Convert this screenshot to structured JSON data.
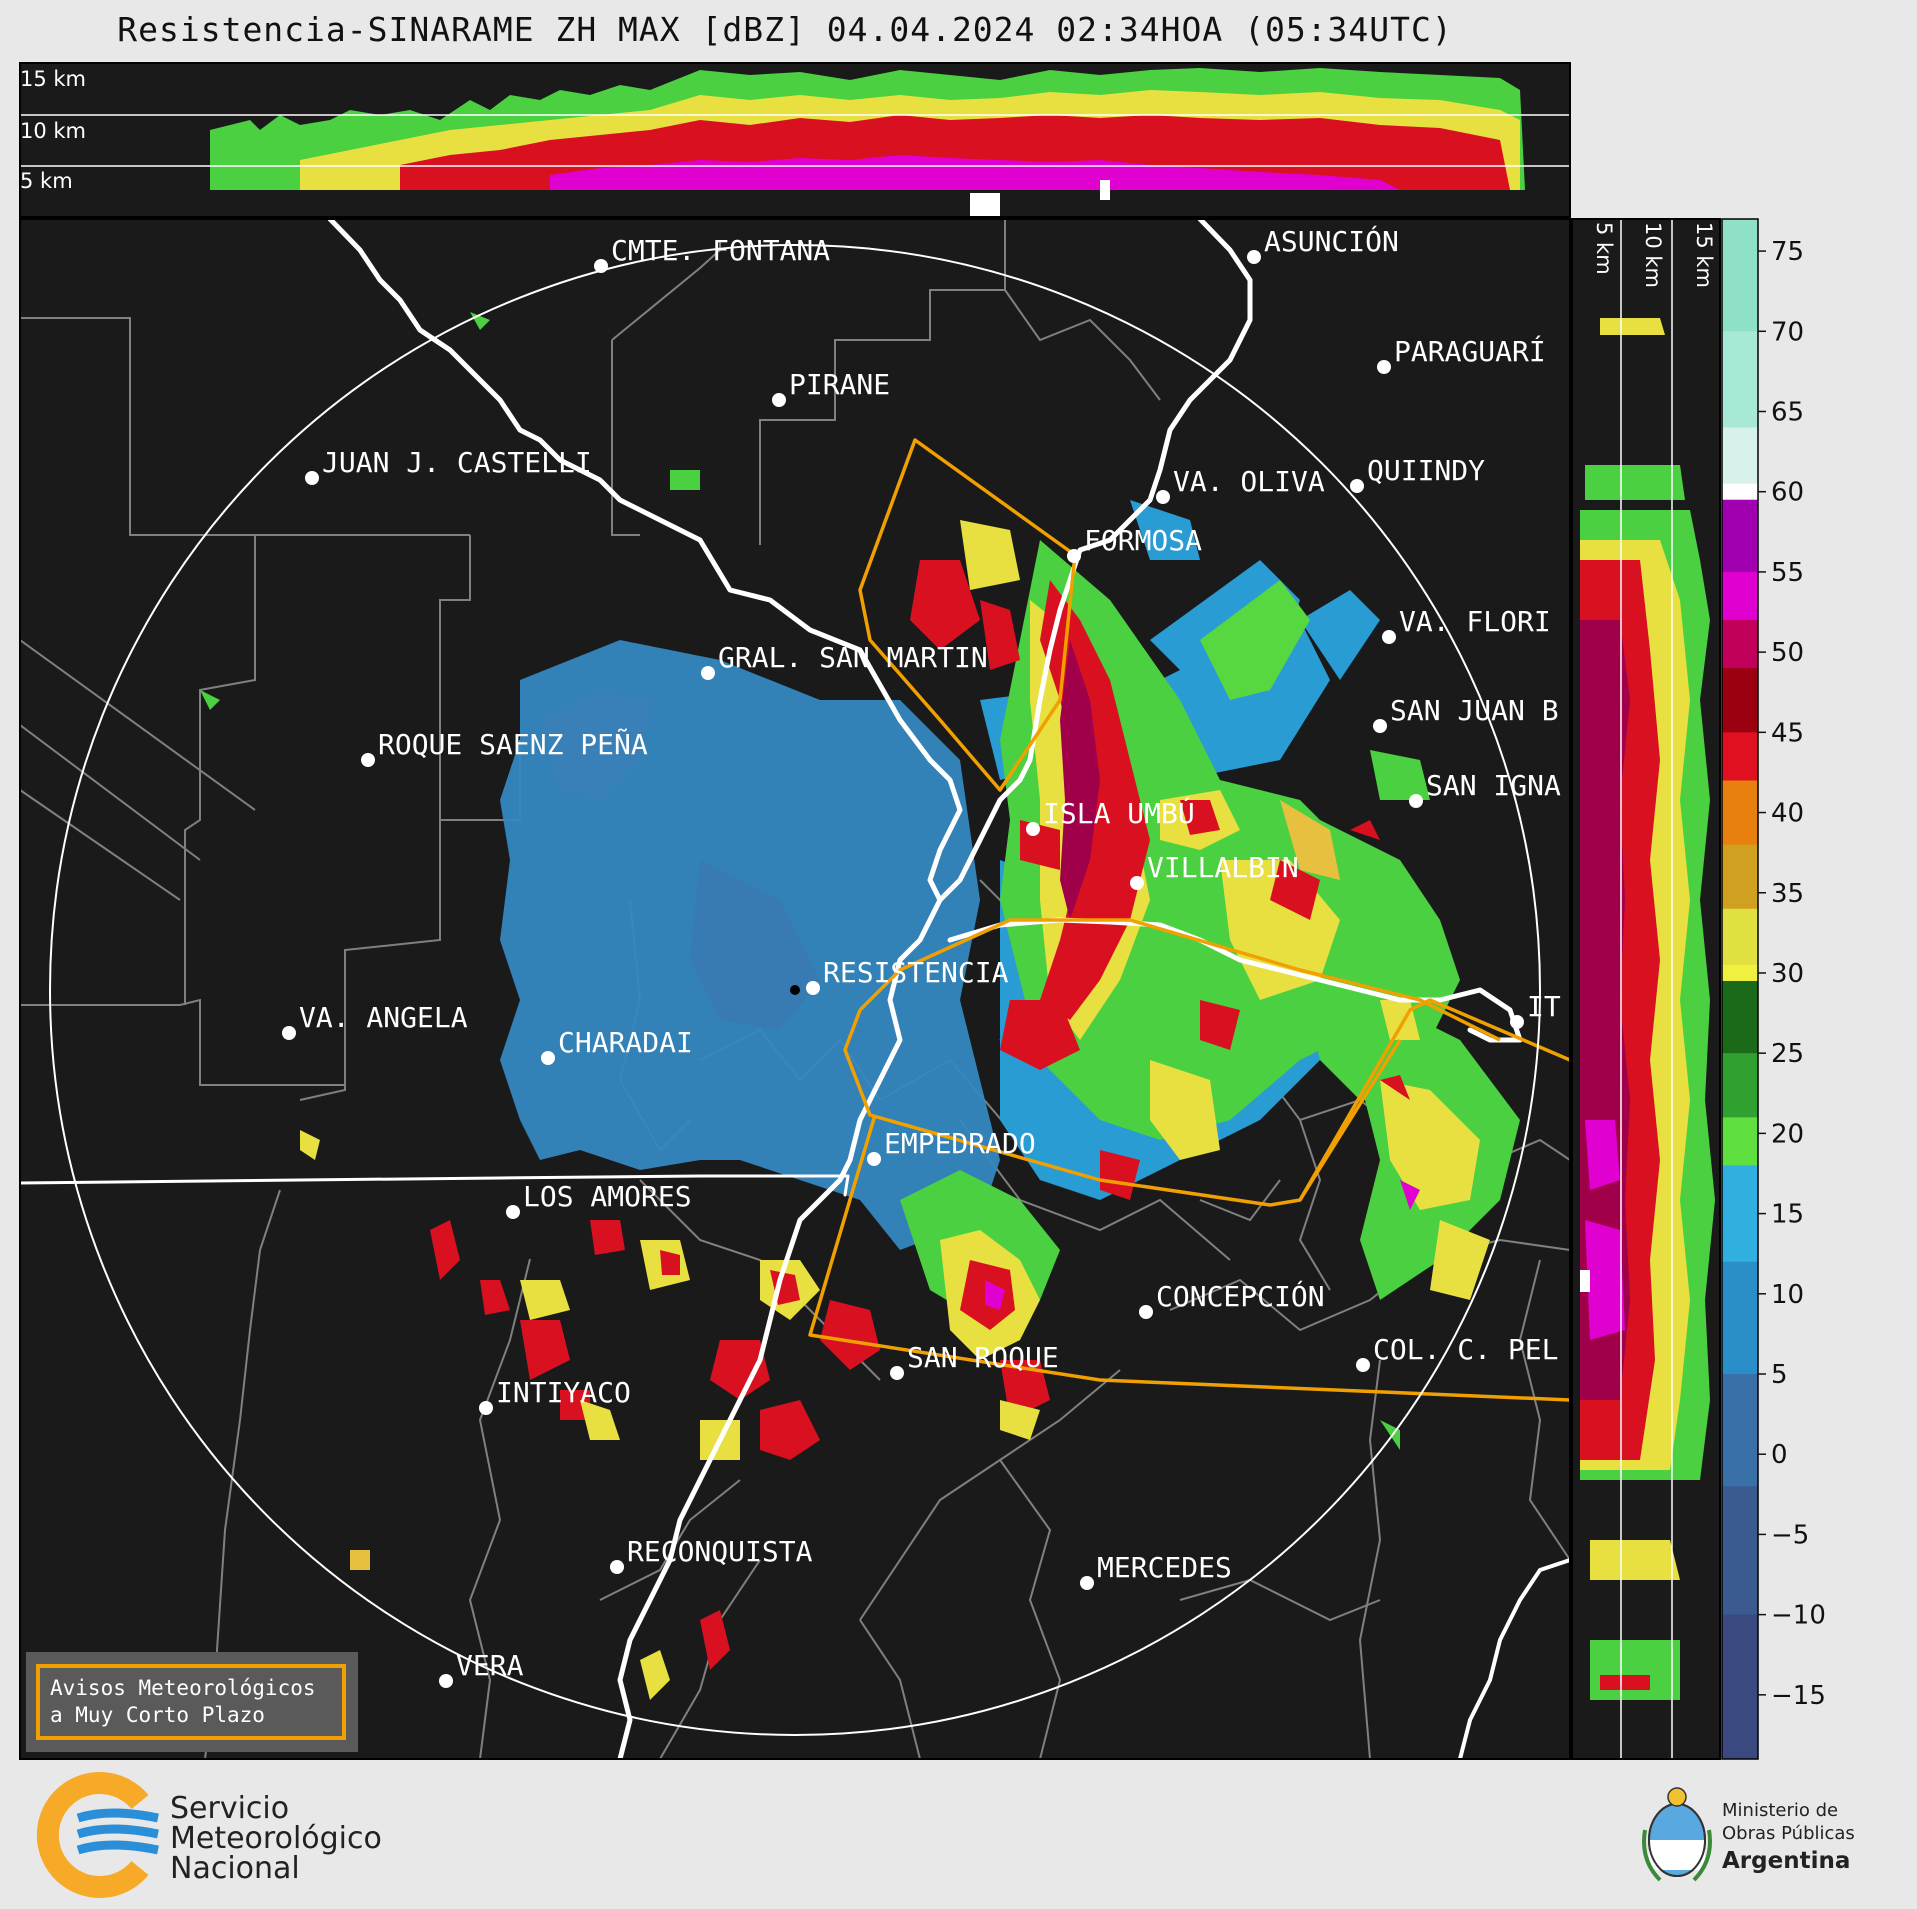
{
  "title": "Resistencia-SINARAME ZH MAX [dBZ] 04.04.2024 02:34HOA (05:34UTC)",
  "altitude_top": [
    "15 km",
    "10 km",
    "5 km"
  ],
  "altitude_side": [
    "5 km",
    "10 km",
    "15 km"
  ],
  "cities": [
    {
      "id": "cmte-fontana",
      "name": "CMTE. FONTANA"
    },
    {
      "id": "asuncion",
      "name": "ASUNCIÓN"
    },
    {
      "id": "paraguari",
      "name": "PARAGUARÍ"
    },
    {
      "id": "pirane",
      "name": "PIRANE"
    },
    {
      "id": "juan-castelli",
      "name": "JUAN J. CASTELLI"
    },
    {
      "id": "va-oliva",
      "name": "VA. OLIVA"
    },
    {
      "id": "quiindy",
      "name": "QUIINDY"
    },
    {
      "id": "formosa",
      "name": "FORMOSA"
    },
    {
      "id": "va-florida",
      "name": "VA. FLORI"
    },
    {
      "id": "gral-san-martin",
      "name": "GRAL. SAN MARTIN"
    },
    {
      "id": "san-juan",
      "name": "SAN JUAN B"
    },
    {
      "id": "roque-saenz-pena",
      "name": "ROQUE SAENZ PEÑA"
    },
    {
      "id": "san-ignacio",
      "name": "SAN IGNA"
    },
    {
      "id": "isla-umbu",
      "name": "ISLA UMBÚ"
    },
    {
      "id": "villalbin",
      "name": "VILLALBIN"
    },
    {
      "id": "resistencia",
      "name": "RESISTENCIA"
    },
    {
      "id": "va-angela",
      "name": "VA. ANGELA"
    },
    {
      "id": "charadai",
      "name": "CHARADAI"
    },
    {
      "id": "ita",
      "name": "IT"
    },
    {
      "id": "empedrado",
      "name": "EMPEDRADO"
    },
    {
      "id": "los-amores",
      "name": "LOS AMORES"
    },
    {
      "id": "concepcion",
      "name": "CONCEPCIÓN"
    },
    {
      "id": "san-roque",
      "name": "SAN ROQUE"
    },
    {
      "id": "col-pellegrini",
      "name": "COL. C. PEL"
    },
    {
      "id": "intiyaco",
      "name": "INTIYACO"
    },
    {
      "id": "reconquista",
      "name": "RECONQUISTA"
    },
    {
      "id": "mercedes",
      "name": "MERCEDES"
    },
    {
      "id": "vera",
      "name": "VERA"
    }
  ],
  "colorbar": {
    "ticks": [
      "75",
      "70",
      "65",
      "60",
      "55",
      "50",
      "45",
      "40",
      "35",
      "30",
      "25",
      "20",
      "15",
      "10",
      "5",
      "0",
      "−5",
      "−10",
      "−15"
    ],
    "stops": [
      {
        "v": 77,
        "c": "#8fe0c8"
      },
      {
        "v": 70,
        "c": "#a8e8d6"
      },
      {
        "v": 64,
        "c": "#d6f2ea"
      },
      {
        "v": 60.5,
        "c": "#ffffff"
      },
      {
        "v": 59.5,
        "c": "#a000b0"
      },
      {
        "v": 55,
        "c": "#e000d0"
      },
      {
        "v": 52,
        "c": "#c0005a"
      },
      {
        "v": 49,
        "c": "#9a0010"
      },
      {
        "v": 45,
        "c": "#e01020"
      },
      {
        "v": 42,
        "c": "#e88010"
      },
      {
        "v": 38,
        "c": "#d0a020"
      },
      {
        "v": 34,
        "c": "#e0e040"
      },
      {
        "v": 30.5,
        "c": "#f0f040"
      },
      {
        "v": 29.5,
        "c": "#1a6a1a"
      },
      {
        "v": 25,
        "c": "#30a030"
      },
      {
        "v": 21,
        "c": "#60e040"
      },
      {
        "v": 18,
        "c": "#30b0e0"
      },
      {
        "v": 12,
        "c": "#2a8ec8"
      },
      {
        "v": 5,
        "c": "#3a70a8"
      },
      {
        "v": -2,
        "c": "#3a5a90"
      },
      {
        "v": -10,
        "c": "#3a4a80"
      },
      {
        "v": -19,
        "c": "#3a3a68"
      }
    ]
  },
  "warning_box": {
    "line1": "Avisos Meteorológicos",
    "line2": "a Muy Corto Plazo"
  },
  "smn_logo": {
    "line1": "Servicio",
    "line2": "Meteorológico",
    "line3": "Nacional"
  },
  "ministry_logo": {
    "line1": "Ministerio de",
    "line2": "Obras Públicas",
    "line3": "Argentina"
  },
  "colors": {
    "map_bg": "#1a1a1a",
    "boundary": "#808080",
    "river": "#ffffff",
    "warning": "#f0a000",
    "smn_orange": "#f7a928",
    "smn_blue": "#2a8ed8"
  }
}
